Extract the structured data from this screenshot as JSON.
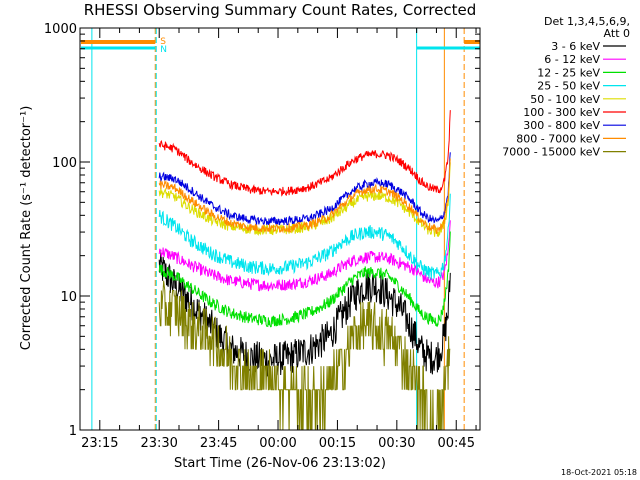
{
  "chart_data": {
    "type": "line",
    "title": "RHESSI Observing Summary Count Rates, Corrected",
    "xlabel": "Start Time (26-Nov-06 23:13:02)",
    "ylabel": "Corrected Count Rate (s⁻¹ detector⁻¹)",
    "y_scale": "log",
    "ylim": [
      1,
      1000
    ],
    "x_range_minutes": [
      -3,
      98
    ],
    "x_ticks": [
      {
        "label": "23:15",
        "minute": 2
      },
      {
        "label": "23:30",
        "minute": 17
      },
      {
        "label": "23:45",
        "minute": 32
      },
      {
        "label": "00:00",
        "minute": 47
      },
      {
        "label": "00:15",
        "minute": 62
      },
      {
        "label": "00:30",
        "minute": 77
      },
      {
        "label": "00:45",
        "minute": 92
      }
    ],
    "y_ticks": [
      {
        "label": "1",
        "value": 1
      },
      {
        "label": "10",
        "value": 10
      },
      {
        "label": "100",
        "value": 100
      },
      {
        "label": "1000",
        "value": 1000
      }
    ],
    "legend_header": "Det 1,3,4,5,6,9,",
    "legend_header2": "Att 0",
    "legend_position": "right",
    "grid": false,
    "markers": {
      "s_label": "S",
      "n_label": "N",
      "s_color": "#ff8c00",
      "n_color": "#00e5ee"
    },
    "vertical_lines": [
      {
        "minute": 0,
        "color": "#00e5ee",
        "style": "solid"
      },
      {
        "minute": 16,
        "color": "#ff8c00",
        "style": "dashed"
      },
      {
        "minute": 16,
        "color": "#00e5ee",
        "style": "dashed"
      },
      {
        "minute": 82,
        "color": "#00e5ee",
        "style": "solid"
      },
      {
        "minute": 89,
        "color": "#ff8c00",
        "style": "solid"
      },
      {
        "minute": 94,
        "color": "#ff8c00",
        "style": "dashed"
      }
    ],
    "curve_times": [
      17,
      21,
      25,
      30,
      35,
      40,
      45,
      50,
      55,
      60,
      63,
      66,
      69,
      72,
      75,
      78,
      81,
      83,
      85,
      87,
      88,
      89,
      90,
      90.5
    ],
    "series": [
      {
        "name": "3 - 6 keV",
        "color": "#000000",
        "noise": 0.1,
        "values": [
          17,
          12,
          9,
          6,
          4,
          3.5,
          3.3,
          3.5,
          4,
          5,
          7,
          10,
          12,
          12,
          10,
          8,
          5.5,
          4,
          3.5,
          3.5,
          4,
          5,
          8,
          14
        ]
      },
      {
        "name": "6 - 12 keV",
        "color": "#ff00ff",
        "noise": 0.035,
        "values": [
          22,
          19.5,
          17,
          14.5,
          13,
          12.3,
          12,
          12.2,
          13,
          14.5,
          16.5,
          18.5,
          19.5,
          19.5,
          19,
          17.5,
          16,
          14.5,
          13,
          12.5,
          13,
          15,
          22,
          40
        ]
      },
      {
        "name": "12 - 25 keV",
        "color": "#00e000",
        "noise": 0.035,
        "values": [
          16,
          14,
          11.5,
          9,
          7.5,
          6.8,
          6.5,
          6.8,
          7.5,
          9,
          11,
          13.5,
          15,
          15,
          14,
          11.5,
          9,
          7.5,
          6.8,
          6.5,
          6.8,
          9,
          15,
          30
        ]
      },
      {
        "name": "25 - 50 keV",
        "color": "#00e5ee",
        "noise": 0.04,
        "values": [
          40,
          33,
          26,
          21,
          18,
          16.5,
          16,
          16.5,
          18,
          21,
          25,
          28,
          30,
          30,
          28,
          24,
          19,
          16.5,
          15,
          14.5,
          15,
          18,
          30,
          60
        ]
      },
      {
        "name": "50 - 100 keV",
        "color": "#dddd00",
        "noise": 0.03,
        "values": [
          60,
          55,
          45,
          37,
          33,
          31.5,
          31,
          31.5,
          33,
          37,
          43,
          50,
          55,
          56,
          54,
          48,
          40,
          35,
          31,
          29.5,
          30,
          35,
          50,
          100
        ]
      },
      {
        "name": "100 - 300 keV",
        "color": "#ff0000",
        "noise": 0.025,
        "values": [
          135,
          125,
          100,
          80,
          68,
          62,
          60,
          61,
          65,
          75,
          88,
          103,
          112,
          115,
          112,
          100,
          85,
          72,
          65,
          62,
          63,
          72,
          110,
          230
        ]
      },
      {
        "name": "300 - 800 keV",
        "color": "#0000e0",
        "noise": 0.025,
        "values": [
          78,
          75,
          62,
          48,
          40,
          37,
          36,
          36.5,
          38,
          44,
          52,
          62,
          68,
          70,
          68,
          60,
          50,
          42,
          38,
          36,
          37,
          42,
          60,
          120
        ]
      },
      {
        "name": "800 - 7000 keV",
        "color": "#ff8c00",
        "noise": 0.025,
        "values": [
          68,
          64,
          52,
          41,
          35,
          32.5,
          32,
          32.3,
          34,
          39,
          47,
          56,
          62,
          63,
          60,
          53,
          44,
          37,
          33,
          31,
          32,
          37,
          55,
          110
        ]
      },
      {
        "name": "7000 - 15000 keV",
        "color": "#808000",
        "noise": 0.0,
        "values": [
          8,
          8,
          6,
          5,
          3.5,
          2.5,
          2.5,
          2,
          1.8,
          2,
          3,
          5,
          6,
          5.5,
          5,
          4,
          2.5,
          2,
          1.5,
          1.2,
          1.5,
          2,
          3,
          6
        ]
      }
    ]
  },
  "footer": {
    "timestamp": "18-Oct-2021 05:18"
  }
}
